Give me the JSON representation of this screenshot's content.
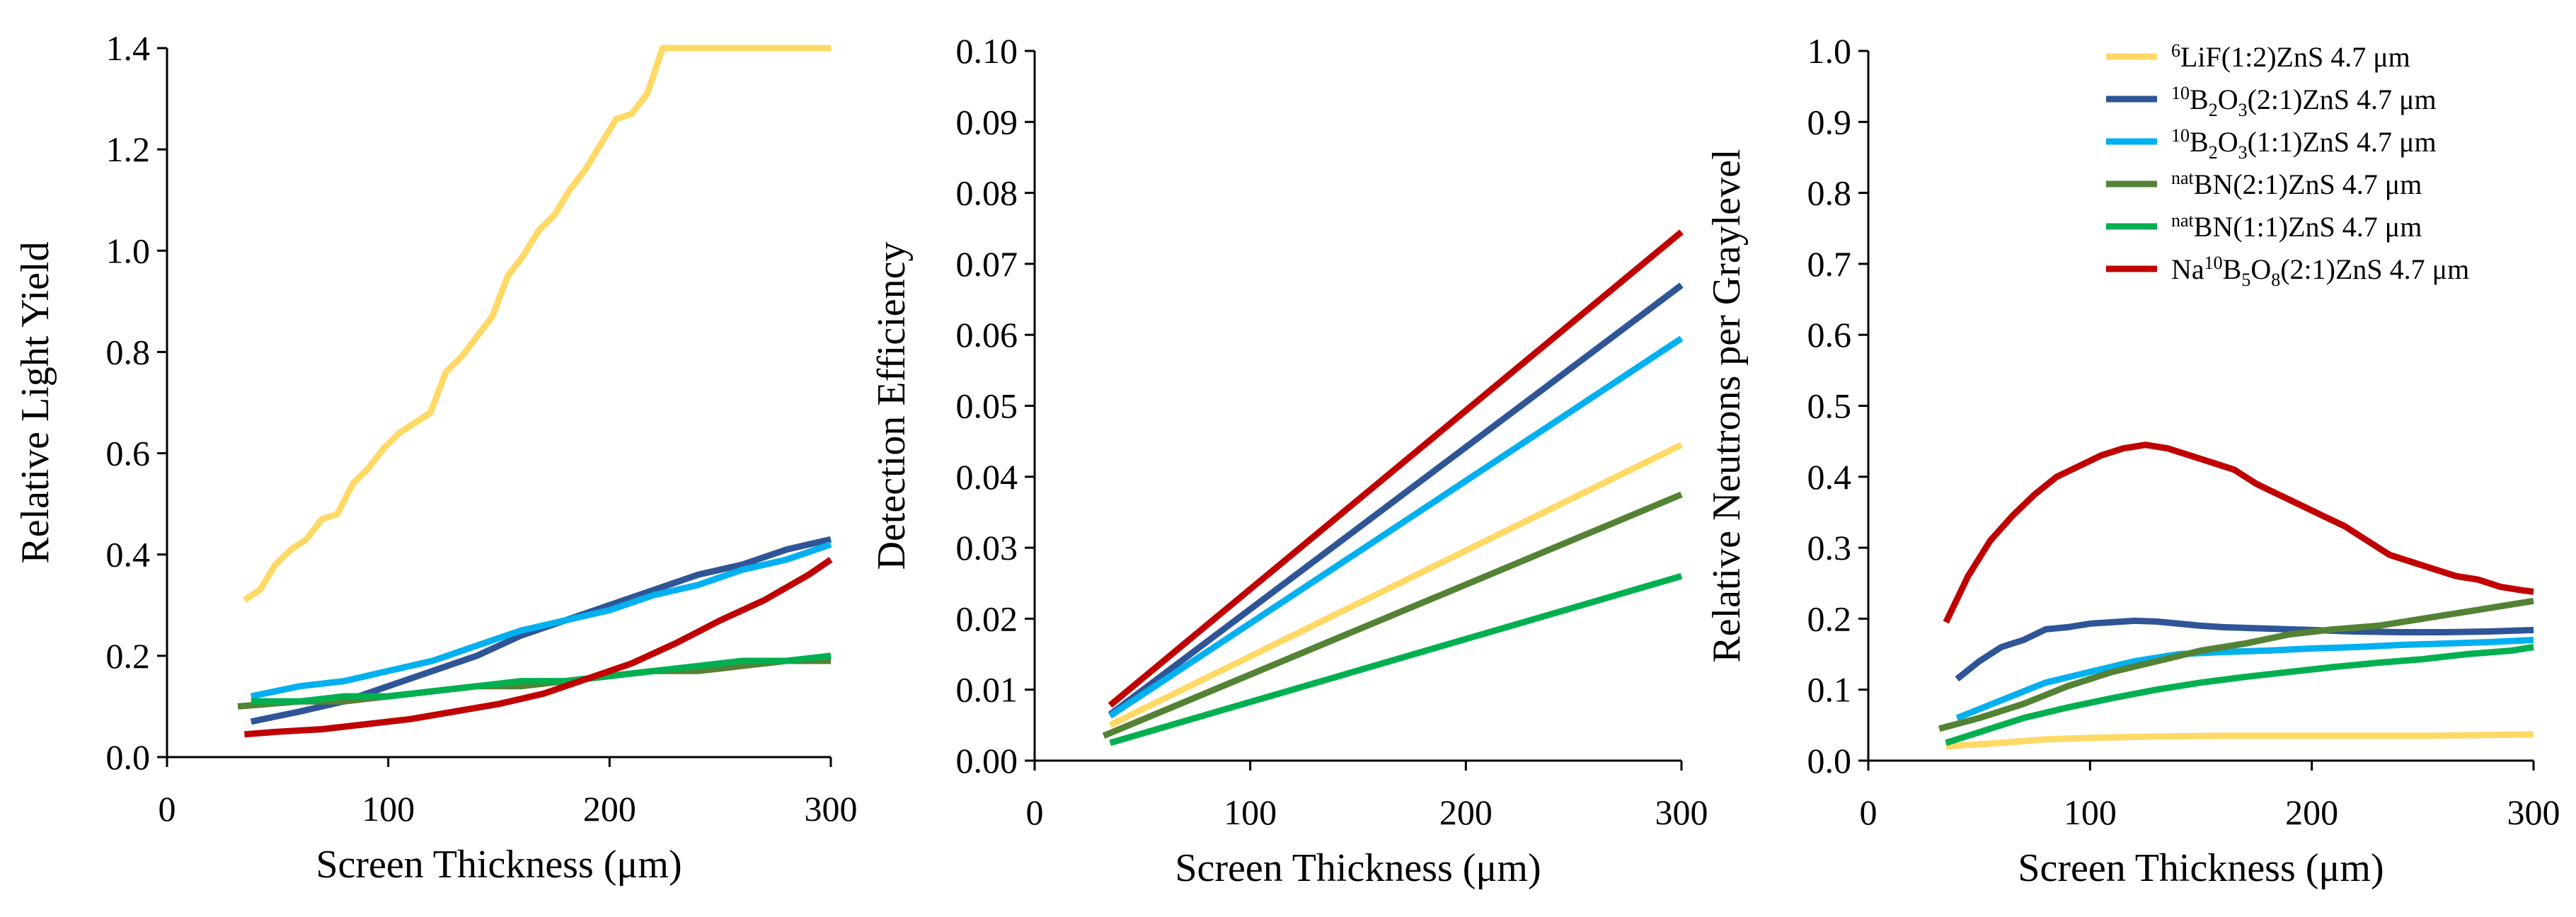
{
  "chart_data": [
    {
      "type": "line",
      "title": "",
      "xlabel": "Screen Thickness (μm)",
      "ylabel": "Relative Light Yield",
      "xlim": [
        0,
        300
      ],
      "ylim": [
        0,
        1.4
      ],
      "xticks": [
        "0",
        "100",
        "200",
        "300"
      ],
      "yticks": [
        "0.0",
        "0.2",
        "0.4",
        "0.6",
        "0.8",
        "1.0",
        "1.2",
        "1.4"
      ],
      "grid": false,
      "series": [
        {
          "name": "LiF6",
          "color": "#FFD966",
          "x": [
            35,
            42,
            49,
            56,
            63,
            70,
            77,
            84,
            91,
            98,
            105,
            112,
            119,
            126,
            133,
            140,
            147,
            154,
            161,
            168,
            175,
            182,
            189,
            196,
            203,
            210,
            217,
            224,
            231,
            238,
            245,
            252,
            259,
            266,
            273,
            280,
            287,
            294,
            300
          ],
          "y": [
            0.31,
            0.33,
            0.38,
            0.41,
            0.43,
            0.47,
            0.48,
            0.54,
            0.57,
            0.61,
            0.64,
            0.66,
            0.68,
            0.76,
            0.79,
            0.83,
            0.87,
            0.95,
            0.99,
            1.04,
            1.07,
            1.12,
            1.16,
            1.21,
            1.26,
            1.27,
            1.31,
            1.4,
            1.4,
            1.4,
            1.4,
            1.4,
            1.4,
            1.4,
            1.4,
            1.4,
            1.4,
            1.4,
            1.4
          ]
        },
        {
          "name": "B2O3-21",
          "color": "#2F5597",
          "x": [
            38,
            60,
            80,
            100,
            120,
            140,
            160,
            180,
            200,
            220,
            240,
            260,
            280,
            300
          ],
          "y": [
            0.07,
            0.09,
            0.11,
            0.14,
            0.17,
            0.2,
            0.24,
            0.27,
            0.3,
            0.33,
            0.36,
            0.38,
            0.41,
            0.43
          ]
        },
        {
          "name": "B2O3-11",
          "color": "#00B0F0",
          "x": [
            38,
            60,
            80,
            100,
            120,
            140,
            160,
            180,
            200,
            220,
            240,
            260,
            280,
            300
          ],
          "y": [
            0.12,
            0.14,
            0.15,
            0.17,
            0.19,
            0.22,
            0.25,
            0.27,
            0.29,
            0.32,
            0.34,
            0.37,
            0.39,
            0.42
          ]
        },
        {
          "name": "BN-21",
          "color": "#548235",
          "x": [
            32,
            60,
            80,
            100,
            120,
            140,
            160,
            180,
            200,
            220,
            240,
            260,
            280,
            300
          ],
          "y": [
            0.1,
            0.11,
            0.11,
            0.12,
            0.13,
            0.14,
            0.14,
            0.15,
            0.16,
            0.17,
            0.17,
            0.18,
            0.19,
            0.19
          ]
        },
        {
          "name": "BN-11",
          "color": "#00B050",
          "x": [
            38,
            60,
            80,
            100,
            120,
            140,
            160,
            180,
            200,
            220,
            240,
            260,
            280,
            300
          ],
          "y": [
            0.11,
            0.11,
            0.12,
            0.12,
            0.13,
            0.14,
            0.15,
            0.15,
            0.16,
            0.17,
            0.18,
            0.19,
            0.19,
            0.2
          ]
        },
        {
          "name": "NaBO-21",
          "color": "#C00000",
          "x": [
            35,
            50,
            70,
            90,
            110,
            130,
            150,
            170,
            190,
            210,
            230,
            250,
            270,
            290,
            300
          ],
          "y": [
            0.045,
            0.05,
            0.055,
            0.065,
            0.075,
            0.09,
            0.105,
            0.125,
            0.155,
            0.185,
            0.225,
            0.27,
            0.31,
            0.36,
            0.39
          ]
        }
      ]
    },
    {
      "type": "line",
      "title": "",
      "xlabel": "Screen Thickness (μm)",
      "ylabel": "Detection Efficiency",
      "xlim": [
        0,
        300
      ],
      "ylim": [
        0,
        0.1
      ],
      "xticks": [
        "0",
        "100",
        "200",
        "300"
      ],
      "yticks": [
        "0.00",
        "0.01",
        "0.02",
        "0.03",
        "0.04",
        "0.05",
        "0.06",
        "0.07",
        "0.08",
        "0.09",
        "0.10"
      ],
      "grid": false,
      "series": [
        {
          "name": "LiF6",
          "color": "#FFD966",
          "x": [
            35,
            300
          ],
          "y": [
            0.005,
            0.0445
          ]
        },
        {
          "name": "B2O3-21",
          "color": "#2F5597",
          "x": [
            35,
            300
          ],
          "y": [
            0.0065,
            0.067
          ]
        },
        {
          "name": "B2O3-11",
          "color": "#00B0F0",
          "x": [
            35,
            300
          ],
          "y": [
            0.0063,
            0.0595
          ]
        },
        {
          "name": "BN-21",
          "color": "#548235",
          "x": [
            32,
            300
          ],
          "y": [
            0.0035,
            0.0375
          ]
        },
        {
          "name": "BN-11",
          "color": "#00B050",
          "x": [
            35,
            300
          ],
          "y": [
            0.0025,
            0.026
          ]
        },
        {
          "name": "NaBO-21",
          "color": "#C00000",
          "x": [
            35,
            300
          ],
          "y": [
            0.0078,
            0.0745
          ]
        }
      ]
    },
    {
      "type": "line",
      "title": "",
      "xlabel": "Screen Thickness (μm)",
      "ylabel": "Relative Neutrons per Graylevel",
      "xlim": [
        0,
        300
      ],
      "ylim": [
        0,
        1.0
      ],
      "xticks": [
        "0",
        "100",
        "200",
        "300"
      ],
      "yticks": [
        "0.0",
        "0.1",
        "0.2",
        "0.3",
        "0.4",
        "0.5",
        "0.6",
        "0.7",
        "0.8",
        "0.9",
        "1.0"
      ],
      "grid": false,
      "series": [
        {
          "name": "LiF6",
          "color": "#FFD966",
          "x": [
            35,
            60,
            80,
            100,
            130,
            160,
            200,
            250,
            300
          ],
          "y": [
            0.02,
            0.025,
            0.03,
            0.032,
            0.034,
            0.035,
            0.035,
            0.035,
            0.037
          ]
        },
        {
          "name": "B2O3-21",
          "color": "#2F5597",
          "x": [
            40,
            50,
            60,
            70,
            80,
            90,
            100,
            110,
            120,
            130,
            140,
            150,
            160,
            180,
            200,
            220,
            240,
            260,
            280,
            300
          ],
          "y": [
            0.115,
            0.14,
            0.16,
            0.17,
            0.185,
            0.188,
            0.193,
            0.195,
            0.197,
            0.196,
            0.193,
            0.19,
            0.188,
            0.186,
            0.184,
            0.182,
            0.181,
            0.181,
            0.182,
            0.184
          ]
        },
        {
          "name": "B2O3-11",
          "color": "#00B0F0",
          "x": [
            40,
            60,
            80,
            100,
            120,
            140,
            160,
            180,
            200,
            220,
            240,
            260,
            280,
            300
          ],
          "y": [
            0.06,
            0.085,
            0.11,
            0.125,
            0.14,
            0.15,
            0.153,
            0.155,
            0.158,
            0.16,
            0.163,
            0.165,
            0.167,
            0.17
          ]
        },
        {
          "name": "BN-21",
          "color": "#548235",
          "x": [
            32,
            50,
            70,
            90,
            110,
            130,
            150,
            170,
            190,
            210,
            230,
            250,
            270,
            290,
            300
          ],
          "y": [
            0.045,
            0.06,
            0.08,
            0.105,
            0.125,
            0.14,
            0.155,
            0.165,
            0.178,
            0.185,
            0.19,
            0.2,
            0.21,
            0.22,
            0.225
          ]
        },
        {
          "name": "BN-11",
          "color": "#00B050",
          "x": [
            35,
            50,
            70,
            90,
            110,
            130,
            150,
            170,
            190,
            210,
            230,
            250,
            270,
            290,
            300
          ],
          "y": [
            0.025,
            0.04,
            0.06,
            0.075,
            0.088,
            0.1,
            0.11,
            0.118,
            0.125,
            0.132,
            0.138,
            0.143,
            0.15,
            0.155,
            0.16
          ]
        },
        {
          "name": "NaBO-21",
          "color": "#C00000",
          "x": [
            35,
            45,
            55,
            65,
            75,
            85,
            95,
            105,
            115,
            125,
            135,
            145,
            155,
            165,
            175,
            185,
            195,
            205,
            215,
            225,
            235,
            245,
            255,
            265,
            275,
            285,
            295,
            300
          ],
          "y": [
            0.195,
            0.26,
            0.31,
            0.345,
            0.375,
            0.4,
            0.415,
            0.43,
            0.44,
            0.445,
            0.44,
            0.43,
            0.42,
            0.41,
            0.39,
            0.375,
            0.36,
            0.345,
            0.33,
            0.31,
            0.29,
            0.28,
            0.27,
            0.26,
            0.255,
            0.245,
            0.24,
            0.238
          ]
        }
      ]
    }
  ],
  "legend": {
    "placement": "top-right of third panel",
    "entries": [
      {
        "sup": "6",
        "base": "LiF(1:2)ZnS 4.7 μm",
        "color": "#FFD966"
      },
      {
        "sup": "10",
        "base": "B",
        "sub": "2",
        "base2": "O",
        "sub2": "3",
        "rest": "(2:1)ZnS 4.7 μm",
        "color": "#2F5597"
      },
      {
        "sup": "10",
        "base": "B",
        "sub": "2",
        "base2": "O",
        "sub2": "3",
        "rest": "(1:1)ZnS 4.7 μm",
        "color": "#00B0F0"
      },
      {
        "sup": "nat",
        "base": "BN(2:1)ZnS 4.7 μm",
        "color": "#548235"
      },
      {
        "sup": "nat",
        "base": "BN(1:1)ZnS 4.7 μm",
        "color": "#00B050"
      },
      {
        "pre": "Na",
        "sup": "10",
        "base": "B",
        "sub": "5",
        "base2": "O",
        "sub2": "8",
        "rest": "(2:1)ZnS 4.7 μm",
        "color": "#C00000"
      }
    ]
  }
}
